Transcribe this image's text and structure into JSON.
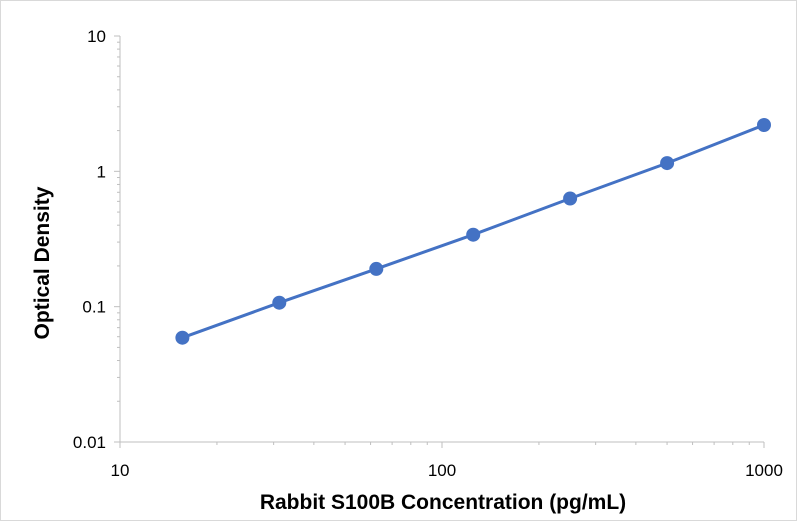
{
  "chart_data": {
    "type": "line",
    "title": "",
    "xlabel": "Rabbit S100B Concentration (pg/mL)",
    "ylabel": "Optical Density",
    "x_scale": "log",
    "y_scale": "log",
    "xlim": [
      10,
      1000
    ],
    "ylim": [
      0.01,
      10
    ],
    "x_ticks": [
      {
        "value": 10,
        "label": "10"
      },
      {
        "value": 100,
        "label": "100"
      },
      {
        "value": 1000,
        "label": "1000"
      }
    ],
    "y_ticks": [
      {
        "value": 0.01,
        "label": "0.01"
      },
      {
        "value": 0.1,
        "label": "0.1"
      },
      {
        "value": 1,
        "label": "1"
      },
      {
        "value": 10,
        "label": "10"
      }
    ],
    "grid": false,
    "legend": "none",
    "series": [
      {
        "color": "#4472c4",
        "x": [
          15.625,
          31.25,
          62.5,
          125,
          250,
          500,
          1000
        ],
        "y": [
          0.059,
          0.107,
          0.19,
          0.34,
          0.63,
          1.15,
          2.2
        ]
      }
    ]
  }
}
